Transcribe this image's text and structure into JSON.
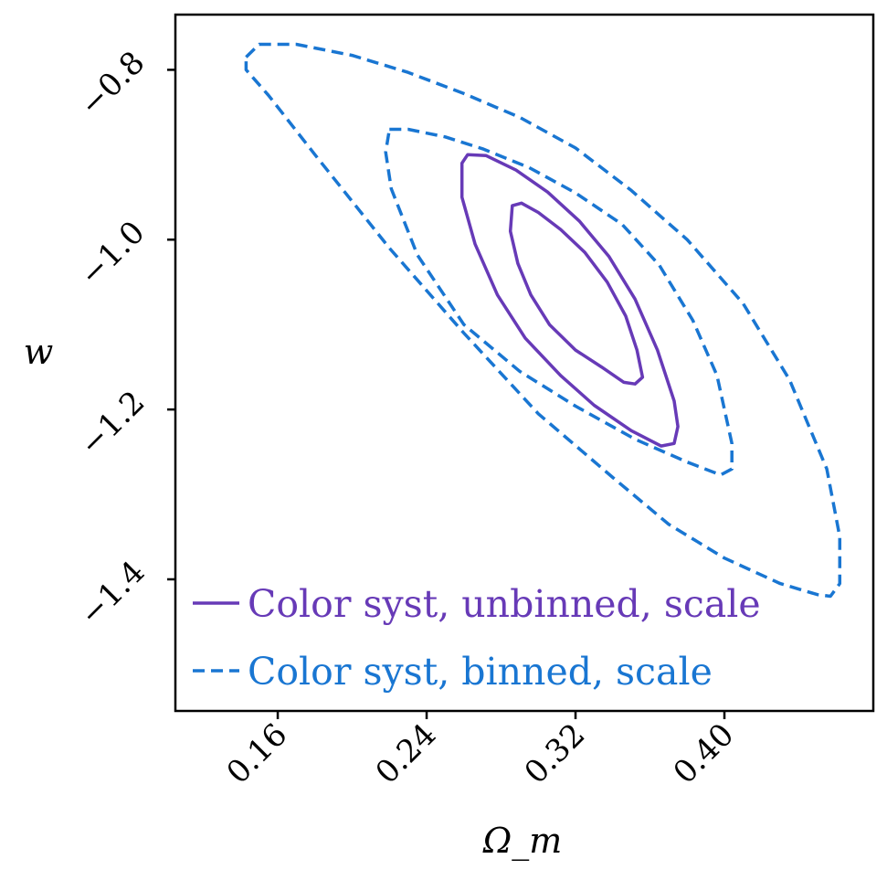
{
  "chart_data": {
    "type": "contour",
    "xlabel": "Ω_m",
    "ylabel": "w",
    "xlim": [
      0.105,
      0.48
    ],
    "ylim": [
      -1.555,
      -0.735
    ],
    "xticks": [
      0.16,
      0.24,
      0.32,
      0.4
    ],
    "xtick_labels": [
      "0.16",
      "0.24",
      "0.32",
      "0.40"
    ],
    "yticks": [
      -0.8,
      -1.0,
      -1.2,
      -1.4
    ],
    "ytick_labels": [
      "−0.8",
      "−1.0",
      "−1.2",
      "−1.4"
    ],
    "grid": false,
    "legend_position": "lower-left",
    "series": [
      {
        "name": "Color syst, unbinned, scale",
        "color": "#673ab7",
        "linestyle": "solid",
        "contours": [
          [
            [
              0.286,
              -0.96
            ],
            [
              0.291,
              -0.957
            ],
            [
              0.3,
              -0.968
            ],
            [
              0.312,
              -0.988
            ],
            [
              0.325,
              -1.015
            ],
            [
              0.337,
              -1.05
            ],
            [
              0.347,
              -1.09
            ],
            [
              0.353,
              -1.13
            ],
            [
              0.356,
              -1.162
            ],
            [
              0.352,
              -1.17
            ],
            [
              0.346,
              -1.168
            ],
            [
              0.334,
              -1.15
            ],
            [
              0.32,
              -1.13
            ],
            [
              0.306,
              -1.1
            ],
            [
              0.296,
              -1.065
            ],
            [
              0.289,
              -1.028
            ],
            [
              0.285,
              -0.99
            ],
            [
              0.286,
              -0.96
            ]
          ],
          [
            [
              0.259,
              -0.91
            ],
            [
              0.262,
              -0.9
            ],
            [
              0.272,
              -0.901
            ],
            [
              0.288,
              -0.918
            ],
            [
              0.305,
              -0.944
            ],
            [
              0.322,
              -0.978
            ],
            [
              0.338,
              -1.02
            ],
            [
              0.352,
              -1.07
            ],
            [
              0.364,
              -1.13
            ],
            [
              0.373,
              -1.19
            ],
            [
              0.375,
              -1.22
            ],
            [
              0.373,
              -1.24
            ],
            [
              0.366,
              -1.243
            ],
            [
              0.35,
              -1.225
            ],
            [
              0.33,
              -1.195
            ],
            [
              0.312,
              -1.16
            ],
            [
              0.293,
              -1.116
            ],
            [
              0.278,
              -1.065
            ],
            [
              0.266,
              -1.005
            ],
            [
              0.259,
              -0.95
            ],
            [
              0.259,
              -0.91
            ]
          ]
        ]
      },
      {
        "name": "Color syst, binned, scale",
        "color": "#1976d2",
        "linestyle": "dashed",
        "contours": [
          [
            [
              0.22,
              -0.87
            ],
            [
              0.23,
              -0.87
            ],
            [
              0.25,
              -0.879
            ],
            [
              0.27,
              -0.893
            ],
            [
              0.295,
              -0.915
            ],
            [
              0.32,
              -0.945
            ],
            [
              0.345,
              -0.982
            ],
            [
              0.365,
              -1.03
            ],
            [
              0.383,
              -1.095
            ],
            [
              0.396,
              -1.16
            ],
            [
              0.404,
              -1.24
            ],
            [
              0.404,
              -1.27
            ],
            [
              0.398,
              -1.277
            ],
            [
              0.38,
              -1.262
            ],
            [
              0.352,
              -1.235
            ],
            [
              0.32,
              -1.196
            ],
            [
              0.29,
              -1.155
            ],
            [
              0.26,
              -1.1
            ],
            [
              0.235,
              -1.018
            ],
            [
              0.221,
              -0.94
            ],
            [
              0.218,
              -0.897
            ],
            [
              0.22,
              -0.87
            ]
          ],
          [
            [
              0.143,
              -0.785
            ],
            [
              0.15,
              -0.77
            ],
            [
              0.17,
              -0.77
            ],
            [
              0.2,
              -0.783
            ],
            [
              0.23,
              -0.803
            ],
            [
              0.26,
              -0.828
            ],
            [
              0.29,
              -0.856
            ],
            [
              0.32,
              -0.892
            ],
            [
              0.35,
              -0.942
            ],
            [
              0.38,
              -1.0
            ],
            [
              0.41,
              -1.075
            ],
            [
              0.435,
              -1.165
            ],
            [
              0.455,
              -1.27
            ],
            [
              0.462,
              -1.35
            ],
            [
              0.462,
              -1.405
            ],
            [
              0.457,
              -1.42
            ],
            [
              0.45,
              -1.418
            ],
            [
              0.43,
              -1.405
            ],
            [
              0.4,
              -1.375
            ],
            [
              0.37,
              -1.335
            ],
            [
              0.34,
              -1.28
            ],
            [
              0.3,
              -1.205
            ],
            [
              0.26,
              -1.11
            ],
            [
              0.22,
              -1.01
            ],
            [
              0.18,
              -0.9
            ],
            [
              0.155,
              -0.83
            ],
            [
              0.143,
              -0.8
            ],
            [
              0.143,
              -0.785
            ]
          ]
        ]
      }
    ]
  }
}
